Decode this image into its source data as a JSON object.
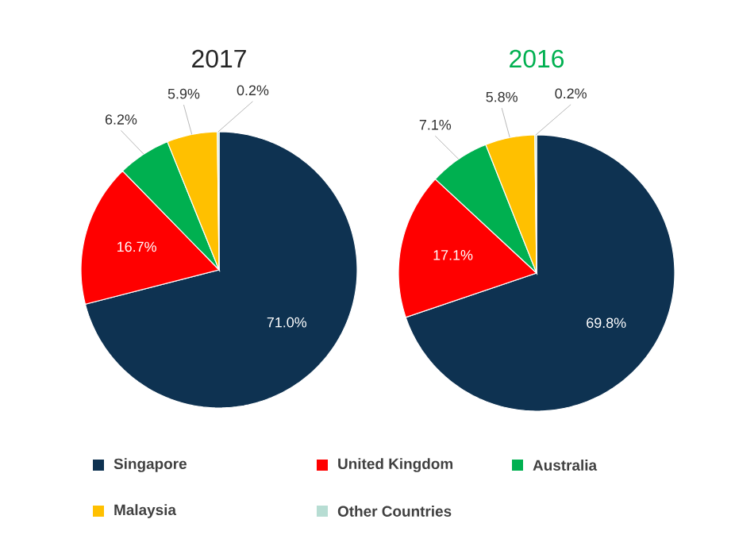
{
  "chart_data": [
    {
      "type": "pie",
      "title": "2017",
      "categories": [
        "Singapore",
        "United Kingdom",
        "Australia",
        "Malaysia",
        "Other Countries"
      ],
      "values": [
        71.0,
        16.7,
        6.2,
        5.9,
        0.2
      ],
      "value_labels": [
        "71.0%",
        "16.7%",
        "6.2%",
        "5.9%",
        "0.2%"
      ],
      "colors": [
        "#0e3251",
        "#ff0000",
        "#00b050",
        "#ffc000",
        "#b7ddd3"
      ],
      "legend": "bottom"
    },
    {
      "type": "pie",
      "title": "2016",
      "categories": [
        null,
        null,
        null,
        null,
        null
      ],
      "values": [
        69.8,
        17.1,
        7.1,
        5.8,
        0.2
      ],
      "value_labels": [
        "69.8%",
        "17.1%",
        "7.1%",
        "5.8%",
        "0.2%"
      ],
      "colors": [
        "#0e3251",
        "#ff0000",
        "#00b050",
        "#ffc000",
        "#b7ddd3"
      ]
    }
  ]
}
